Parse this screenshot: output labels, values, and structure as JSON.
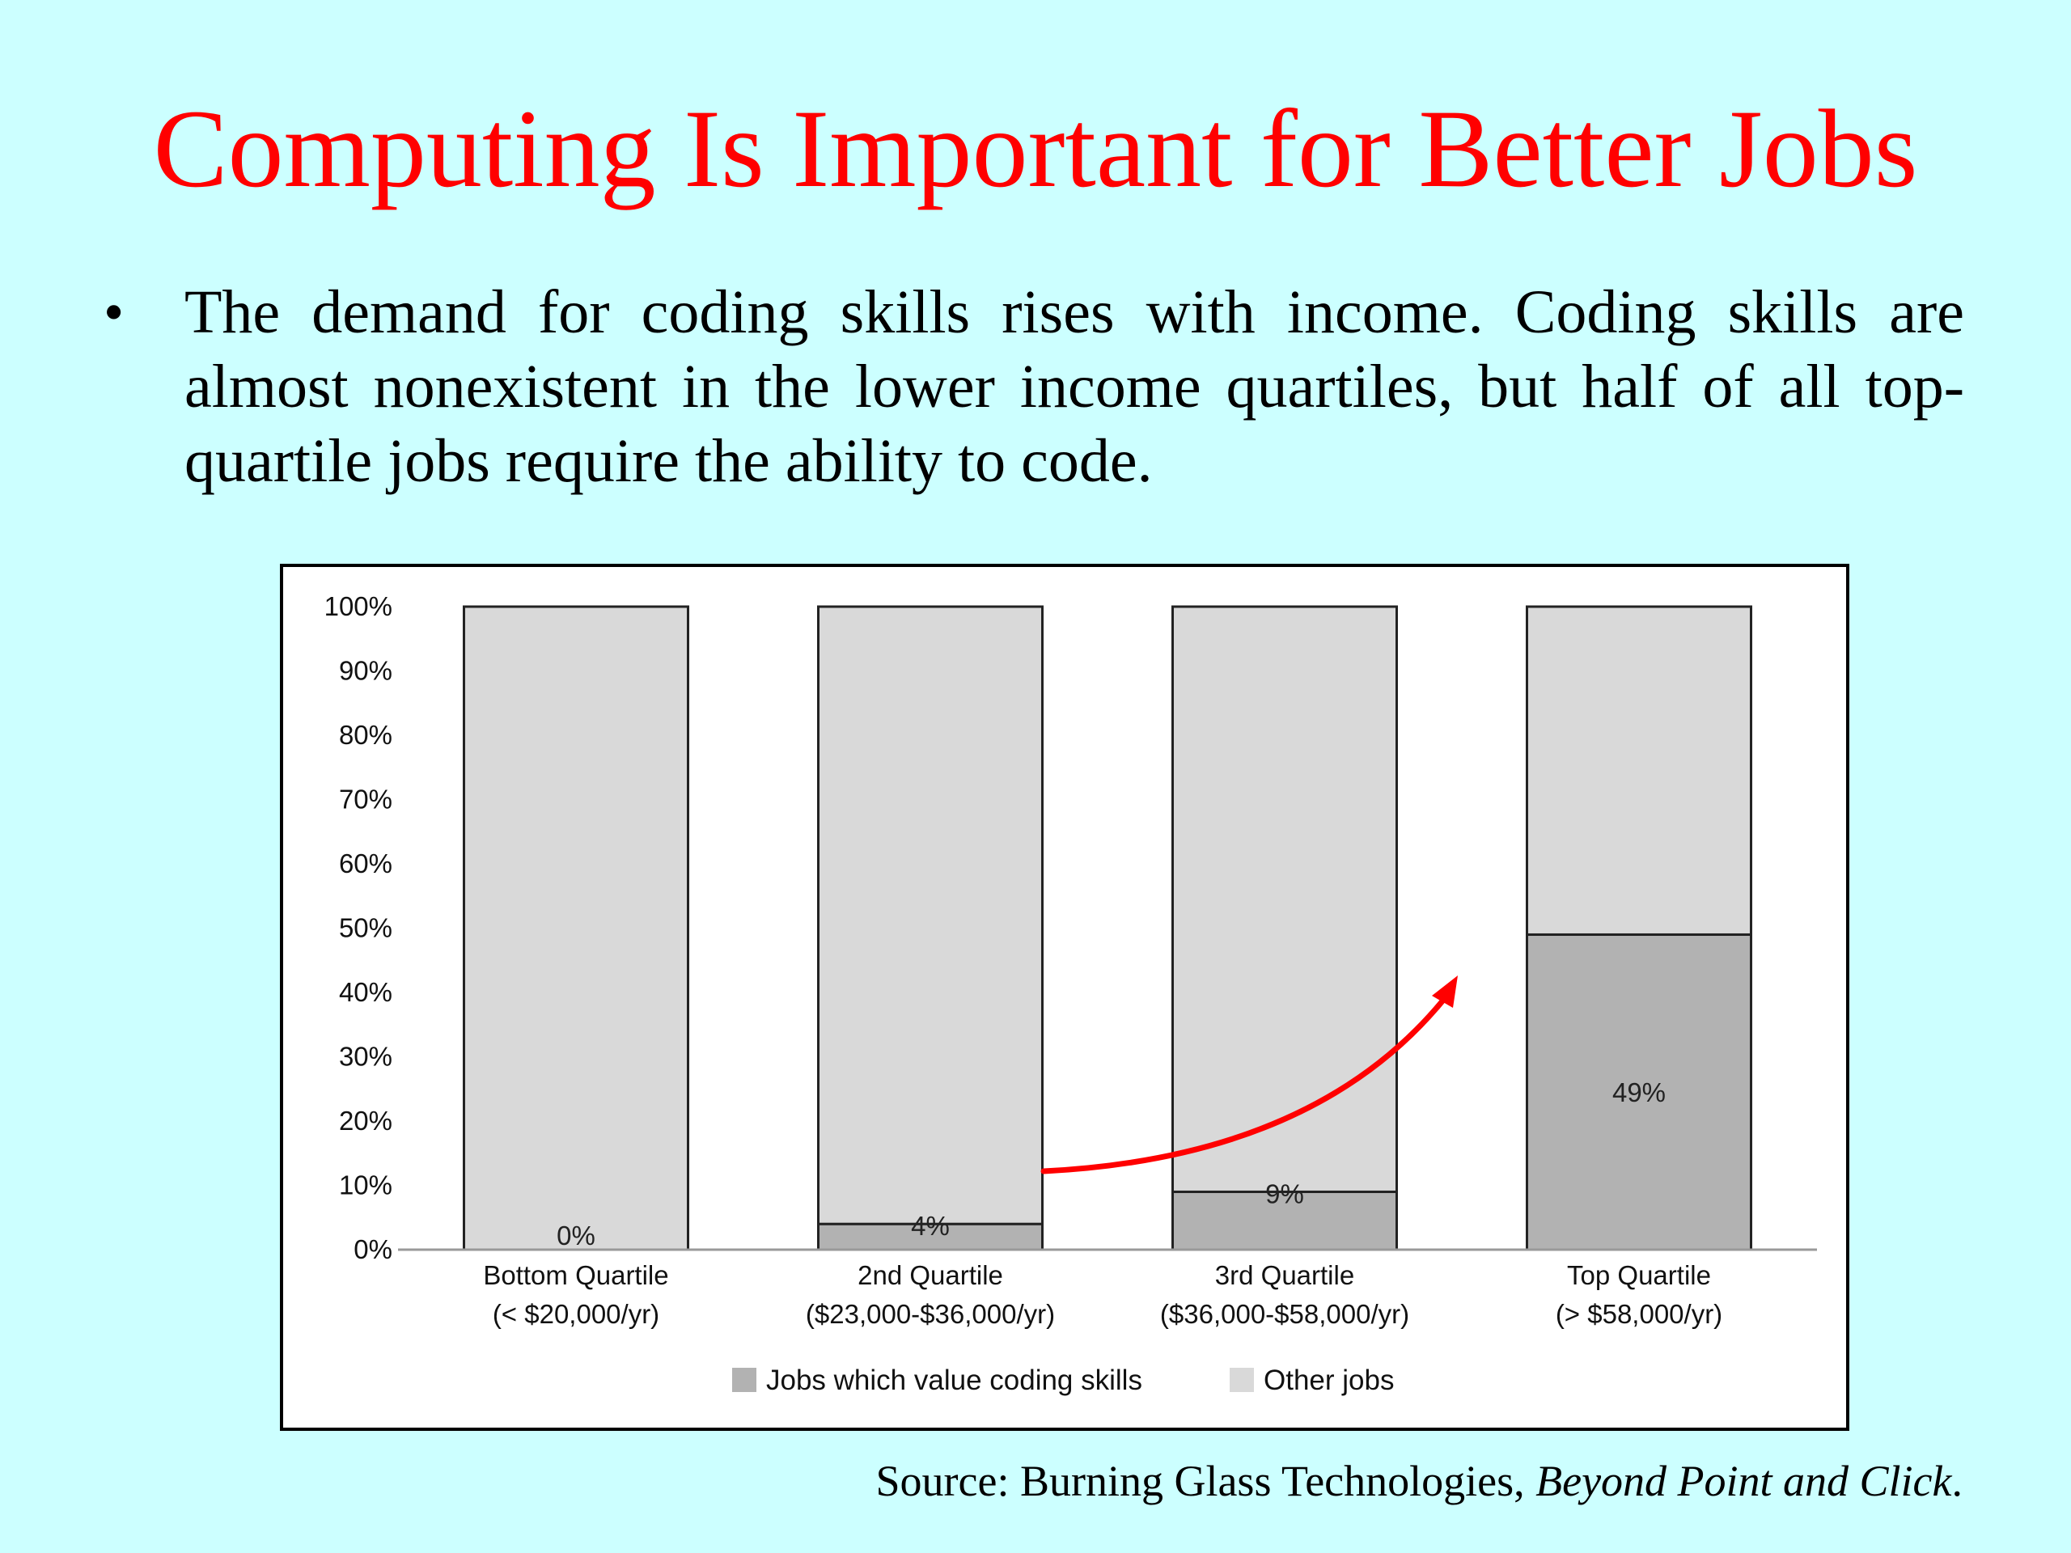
{
  "slide": {
    "title": "Computing Is Important for Better Jobs",
    "bullet": "The demand for coding skills rises with income. Coding skills are almost nonexistent in the lower income quartiles, but half of all top-quartile jobs require the ability to code.",
    "source_prefix": "Source: Burning Glass Technologies, ",
    "source_title": "Beyond Point and Click",
    "source_suffix": ".",
    "colors": {
      "background": "#ccffff",
      "title": "#ff0000",
      "arrow": "#ff0000"
    }
  },
  "chart_data": {
    "type": "bar",
    "stacked": true,
    "categories": [
      [
        "Bottom Quartile",
        "(< $20,000/yr)"
      ],
      [
        "2nd Quartile",
        "($23,000-$36,000/yr)"
      ],
      [
        "3rd Quartile",
        "($36,000-$58,000/yr)"
      ],
      [
        "Top Quartile",
        "(> $58,000/yr)"
      ]
    ],
    "series": [
      {
        "name": "Jobs which value coding skills",
        "values": [
          0,
          4,
          9,
          49
        ],
        "color": "#b2b2b2"
      },
      {
        "name": "Other jobs",
        "values": [
          100,
          96,
          91,
          51
        ],
        "color": "#d9d9d9"
      }
    ],
    "data_labels": [
      "0%",
      "4%",
      "9%",
      "49%"
    ],
    "yticks": [
      "0%",
      "10%",
      "20%",
      "30%",
      "40%",
      "50%",
      "60%",
      "70%",
      "80%",
      "90%",
      "100%"
    ],
    "ylim": [
      0,
      100
    ],
    "legend_position": "bottom",
    "annotation": "red curved arrow rising from 2nd Quartile toward Top Quartile"
  }
}
